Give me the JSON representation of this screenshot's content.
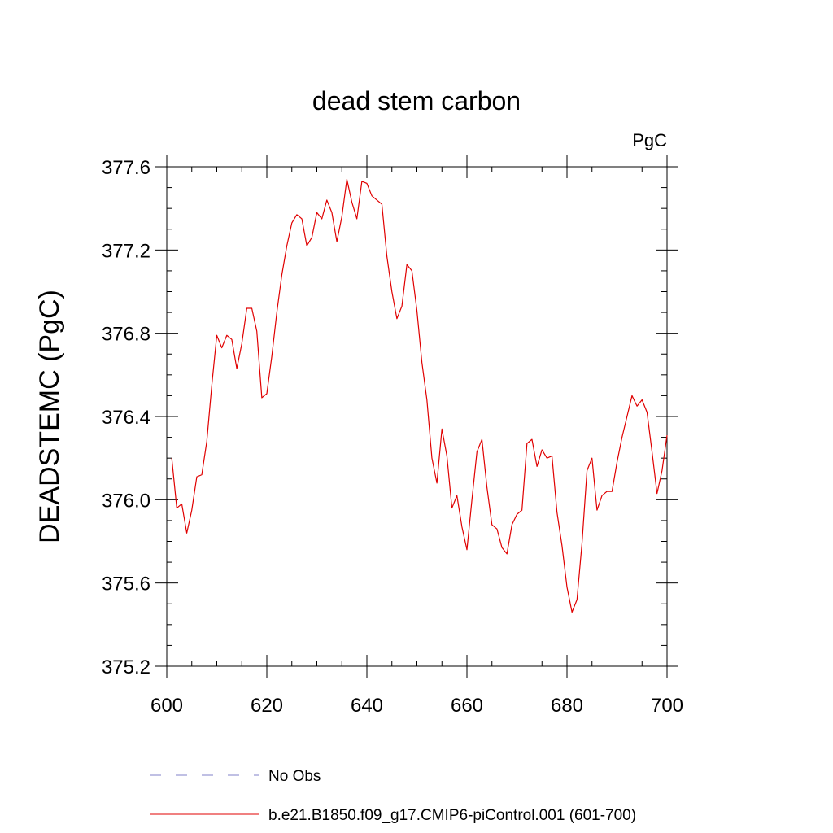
{
  "chart_data": {
    "type": "line",
    "title": "dead stem carbon",
    "units": "PgC",
    "xlabel": "",
    "ylabel": "DEADSTEMC  (PgC)",
    "xlim": [
      600,
      700
    ],
    "ylim": [
      375.2,
      377.6
    ],
    "x_ticks": [
      600,
      620,
      640,
      660,
      680,
      700
    ],
    "x_tick_labels": [
      "600",
      "620",
      "640",
      "660",
      "680",
      "700"
    ],
    "y_ticks": [
      375.2,
      375.6,
      376.0,
      376.4,
      376.8,
      377.2,
      377.6
    ],
    "y_tick_labels": [
      "375.2",
      "375.6",
      "376.0",
      "376.4",
      "376.8",
      "377.2",
      "377.6"
    ],
    "grid": false,
    "legend_position": "bottom",
    "series": [
      {
        "name": "No Obs",
        "color": "#8080c8",
        "style": "dashed",
        "x": [],
        "y": []
      },
      {
        "name": "b.e21.B1850.f09_g17.CMIP6-piControl.001 (601-700)",
        "color": "#e00000",
        "style": "solid",
        "x": [
          601,
          602,
          603,
          604,
          605,
          606,
          607,
          608,
          609,
          610,
          611,
          612,
          613,
          614,
          615,
          616,
          617,
          618,
          619,
          620,
          621,
          622,
          623,
          624,
          625,
          626,
          627,
          628,
          629,
          630,
          631,
          632,
          633,
          634,
          635,
          636,
          637,
          638,
          639,
          640,
          641,
          642,
          643,
          644,
          645,
          646,
          647,
          648,
          649,
          650,
          651,
          652,
          653,
          654,
          655,
          656,
          657,
          658,
          659,
          660,
          661,
          662,
          663,
          664,
          665,
          666,
          667,
          668,
          669,
          670,
          671,
          672,
          673,
          674,
          675,
          676,
          677,
          678,
          679,
          680,
          681,
          682,
          683,
          684,
          685,
          686,
          687,
          688,
          689,
          690,
          691,
          692,
          693,
          694,
          695,
          696,
          697,
          698,
          699,
          700
        ],
        "y": [
          376.2,
          375.96,
          375.98,
          375.84,
          375.95,
          376.11,
          376.12,
          376.28,
          376.55,
          376.79,
          376.73,
          376.79,
          376.77,
          376.63,
          376.75,
          376.92,
          376.92,
          376.81,
          376.49,
          376.51,
          376.69,
          376.9,
          377.08,
          377.22,
          377.33,
          377.37,
          377.35,
          377.22,
          377.26,
          377.38,
          377.35,
          377.44,
          377.38,
          377.24,
          377.36,
          377.54,
          377.43,
          377.35,
          377.53,
          377.52,
          377.46,
          377.44,
          377.42,
          377.17,
          377.0,
          376.87,
          376.93,
          377.13,
          377.1,
          376.91,
          376.66,
          376.48,
          376.2,
          376.08,
          376.34,
          376.21,
          375.96,
          376.02,
          375.87,
          375.76,
          376.0,
          376.23,
          376.29,
          376.06,
          375.88,
          375.86,
          375.77,
          375.74,
          375.88,
          375.93,
          375.95,
          376.27,
          376.29,
          376.16,
          376.24,
          376.2,
          376.21,
          375.94,
          375.78,
          375.58,
          375.46,
          375.52,
          375.79,
          376.14,
          376.2,
          375.95,
          376.02,
          376.04,
          376.04,
          376.18,
          376.3,
          376.4,
          376.5,
          376.45,
          376.48,
          376.42,
          376.23,
          376.03,
          376.14,
          376.31
        ]
      }
    ]
  }
}
